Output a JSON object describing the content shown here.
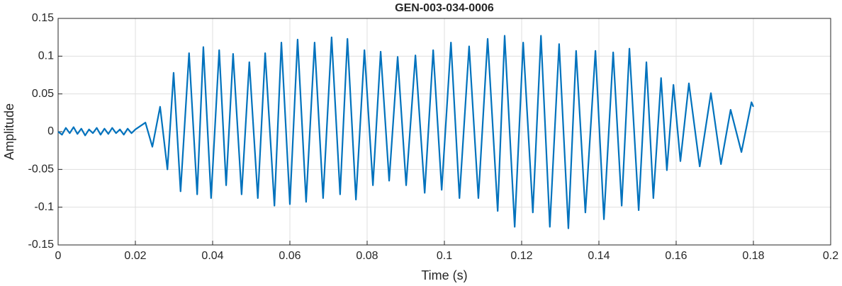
{
  "chart_data": {
    "type": "line",
    "title": "GEN-003-034-0006",
    "xlabel": "Time (s)",
    "ylabel": "Amplitude",
    "color": "#0072BD",
    "grid": true,
    "xlim": [
      0,
      0.2
    ],
    "xticks": [
      0,
      0.02,
      0.04,
      0.06,
      0.08,
      0.1,
      0.12,
      0.14,
      0.16,
      0.18,
      0.2
    ],
    "ylim": [
      -0.15,
      0.15
    ],
    "yticks": [
      -0.15,
      -0.1,
      -0.05,
      0,
      0.05,
      0.1,
      0.15
    ],
    "x": [
      0,
      0.001,
      0.002,
      0.003,
      0.004,
      0.005,
      0.006,
      0.007,
      0.008,
      0.009,
      0.01,
      0.011,
      0.012,
      0.013,
      0.014,
      0.015,
      0.016,
      0.017,
      0.018,
      0.019,
      0.02,
      0.0226,
      0.0244,
      0.0264,
      0.0283,
      0.0299,
      0.0317,
      0.0339,
      0.036,
      0.0376,
      0.0396,
      0.0417,
      0.0435,
      0.0453,
      0.0475,
      0.0495,
      0.0517,
      0.0536,
      0.056,
      0.0578,
      0.06,
      0.062,
      0.0642,
      0.0664,
      0.0686,
      0.0708,
      0.073,
      0.0749,
      0.0771,
      0.0793,
      0.0815,
      0.0835,
      0.0857,
      0.0879,
      0.0901,
      0.0925,
      0.0949,
      0.0971,
      0.0993,
      0.1017,
      0.1039,
      0.1064,
      0.1088,
      0.1112,
      0.1138,
      0.1156,
      0.1182,
      0.1204,
      0.1229,
      0.125,
      0.1273,
      0.1297,
      0.1321,
      0.1341,
      0.1365,
      0.1391,
      0.1413,
      0.1437,
      0.1459,
      0.1479,
      0.1503,
      0.1523,
      0.1541,
      0.1561,
      0.1576,
      0.1593,
      0.1611,
      0.1633,
      0.1661,
      0.169,
      0.1716,
      0.1741,
      0.1769,
      0.1795,
      0.18
    ],
    "values": [
      0,
      -0.004,
      0.005,
      -0.002,
      0.006,
      -0.003,
      0.004,
      -0.005,
      0.003,
      -0.002,
      0.005,
      -0.004,
      0.004,
      -0.003,
      0.005,
      -0.002,
      0.003,
      -0.004,
      0.004,
      -0.002,
      0.003,
      0.012,
      -0.02,
      0.033,
      -0.05,
      0.078,
      -0.079,
      0.104,
      -0.083,
      0.112,
      -0.088,
      0.108,
      -0.071,
      0.103,
      -0.083,
      0.092,
      -0.088,
      0.104,
      -0.098,
      0.118,
      -0.096,
      0.122,
      -0.093,
      0.118,
      -0.088,
      0.125,
      -0.083,
      0.123,
      -0.09,
      0.108,
      -0.071,
      0.106,
      -0.065,
      0.099,
      -0.071,
      0.101,
      -0.081,
      0.108,
      -0.077,
      0.118,
      -0.088,
      0.113,
      -0.088,
      0.123,
      -0.105,
      0.127,
      -0.126,
      0.118,
      -0.107,
      0.127,
      -0.126,
      0.116,
      -0.128,
      0.107,
      -0.107,
      0.107,
      -0.116,
      0.105,
      -0.098,
      0.11,
      -0.104,
      0.092,
      -0.088,
      0.071,
      -0.051,
      0.062,
      -0.039,
      0.064,
      -0.046,
      0.051,
      -0.043,
      0.029,
      -0.027,
      0.039,
      0.033
    ]
  }
}
